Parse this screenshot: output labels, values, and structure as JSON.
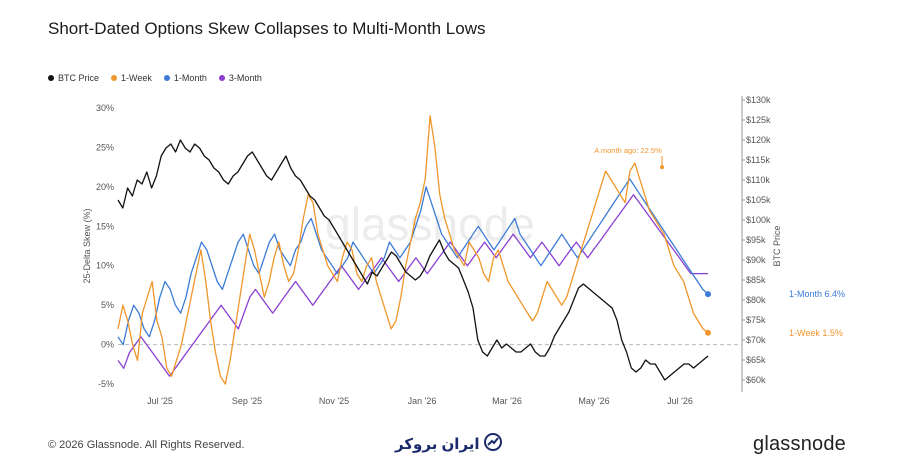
{
  "header": {
    "title": "Short-Dated Options Skew Collapses to Multi-Month Lows"
  },
  "legend": {
    "items": [
      {
        "label": "BTC Price",
        "color": "#111111"
      },
      {
        "label": "1-Week",
        "color": "#f0962b"
      },
      {
        "label": "1-Month",
        "color": "#3c7bd6"
      },
      {
        "label": "3-Month",
        "color": "#8a3fd1"
      }
    ]
  },
  "footer": {
    "copyright": "© 2026 Glassnode. All Rights Reserved.",
    "brand": "glassnode",
    "center_logo_text": "ایران بروکر"
  },
  "chart_data": {
    "type": "line",
    "title": "Short-Dated Options Skew Collapses to Multi-Month Lows",
    "ylabel": "25-Delta Skew (%)",
    "y2label": "BTC Price",
    "ylim": [
      -6,
      31
    ],
    "y2lim": [
      57000,
      130000
    ],
    "x_ticks": [
      "Jul '25",
      "Sep '25",
      "Nov '25",
      "Jan '26",
      "Mar '26",
      "May '26",
      "Jul '26"
    ],
    "y_ticks": [
      "30%",
      "25%",
      "20%",
      "15%",
      "10%",
      "5%",
      "0%",
      "-5%"
    ],
    "y_tick_values": [
      30,
      25,
      20,
      15,
      10,
      5,
      0,
      -5
    ],
    "y2_ticks": [
      "$130k",
      "$125k",
      "$120k",
      "$115k",
      "$110k",
      "$105k",
      "$100k",
      "$95k",
      "$90k",
      "$85k",
      "$80k",
      "$75k",
      "$70k",
      "$65k",
      "$60k"
    ],
    "y2_tick_values": [
      130000,
      125000,
      120000,
      115000,
      110000,
      105000,
      100000,
      95000,
      90000,
      85000,
      80000,
      75000,
      70000,
      65000,
      60000
    ],
    "annotation": {
      "text": "A month ago: 22.5%"
    },
    "end_labels": [
      {
        "text": "1-Month 6.4%",
        "value": 6.4,
        "color": "#3c7bd6"
      },
      {
        "text": "1-Week 1.5%",
        "value": 1.5,
        "color": "#f0962b"
      }
    ],
    "series": [
      {
        "name": "BTC Price",
        "axis": "right",
        "color": "#111111",
        "values": [
          105000,
          103000,
          108000,
          106000,
          110000,
          109000,
          112000,
          108000,
          111000,
          116000,
          118000,
          119000,
          117000,
          120000,
          118000,
          117000,
          119000,
          118000,
          116000,
          115000,
          113000,
          112000,
          110000,
          109000,
          111000,
          112000,
          114000,
          116000,
          117000,
          115000,
          113000,
          111000,
          110000,
          112000,
          114000,
          116000,
          113000,
          111000,
          110000,
          108000,
          106000,
          105000,
          103000,
          101000,
          100000,
          98000,
          96000,
          94000,
          92000,
          90000,
          88000,
          86000,
          84000,
          87000,
          86000,
          88000,
          90000,
          92000,
          91000,
          89000,
          87000,
          86000,
          85000,
          86000,
          88000,
          91000,
          93000,
          95000,
          92000,
          90000,
          89000,
          88000,
          85000,
          82000,
          78000,
          70000,
          67000,
          66000,
          68000,
          70000,
          68000,
          69000,
          68000,
          67000,
          67000,
          68000,
          69000,
          67000,
          66000,
          66000,
          68000,
          71000,
          73000,
          75000,
          77000,
          80000,
          83000,
          84000,
          83000,
          82000,
          81000,
          80000,
          79000,
          78000,
          75000,
          70000,
          67000,
          63000,
          62000,
          63000,
          65000,
          64000,
          64000,
          62000,
          60000,
          61000,
          62000,
          63000,
          64000,
          64000,
          63000,
          64000,
          65000,
          66000
        ]
      },
      {
        "name": "1-Week",
        "axis": "left",
        "color": "#f0962b",
        "values": [
          2,
          5,
          3,
          0,
          -2,
          4,
          6,
          8,
          3,
          1,
          -3,
          -4,
          -2,
          0,
          3,
          6,
          9,
          12,
          8,
          3,
          -1,
          -4,
          -5,
          -2,
          2,
          6,
          10,
          14,
          12,
          9,
          6,
          8,
          11,
          13,
          10,
          8,
          9,
          12,
          16,
          19,
          18,
          14,
          12,
          10,
          9,
          8,
          11,
          13,
          12,
          9,
          8,
          10,
          11,
          8,
          6,
          4,
          2,
          3,
          6,
          10,
          13,
          16,
          18,
          21,
          29,
          25,
          19,
          16,
          14,
          12,
          11,
          10,
          13,
          12,
          11,
          9,
          8,
          11,
          12,
          10,
          8,
          7,
          6,
          5,
          4,
          3,
          4,
          6,
          8,
          7,
          6,
          5,
          6,
          8,
          10,
          12,
          14,
          16,
          18,
          20,
          22,
          21,
          20,
          19,
          18,
          22,
          23,
          21,
          19,
          17,
          16,
          15,
          14,
          12,
          10,
          9,
          8,
          6,
          4,
          3,
          2,
          1.5
        ]
      },
      {
        "name": "1-Month",
        "axis": "left",
        "color": "#3c7bd6",
        "values": [
          1,
          0,
          3,
          5,
          4,
          2,
          1,
          3,
          6,
          8,
          7,
          5,
          4,
          6,
          9,
          11,
          13,
          12,
          10,
          8,
          7,
          9,
          11,
          13,
          14,
          12,
          10,
          9,
          11,
          13,
          14,
          12,
          11,
          10,
          12,
          13,
          15,
          16,
          14,
          12,
          11,
          10,
          9,
          10,
          11,
          13,
          12,
          11,
          10,
          9,
          10,
          11,
          13,
          12,
          11,
          12,
          13,
          15,
          17,
          20,
          18,
          16,
          14,
          13,
          12,
          11,
          12,
          13,
          14,
          15,
          14,
          13,
          12,
          13,
          14,
          15,
          16,
          14,
          13,
          12,
          11,
          10,
          11,
          12,
          13,
          14,
          13,
          12,
          11,
          12,
          13,
          14,
          15,
          16,
          17,
          18,
          19,
          20,
          21,
          20,
          19,
          18,
          17,
          16,
          15,
          14,
          13,
          12,
          11,
          10,
          9,
          8,
          7,
          6.4
        ]
      },
      {
        "name": "3-Month",
        "axis": "left",
        "color": "#8a3fd1",
        "values": [
          -2,
          -3,
          -1,
          0,
          1,
          0,
          -1,
          -2,
          -3,
          -4,
          -3,
          -2,
          -1,
          0,
          1,
          2,
          3,
          4,
          5,
          4,
          3,
          2,
          4,
          6,
          7,
          6,
          5,
          4,
          5,
          6,
          7,
          8,
          7,
          6,
          5,
          6,
          7,
          8,
          9,
          10,
          9,
          8,
          7,
          8,
          9,
          10,
          11,
          10,
          9,
          8,
          9,
          10,
          11,
          10,
          9,
          10,
          11,
          12,
          13,
          12,
          11,
          10,
          11,
          12,
          13,
          12,
          11,
          12,
          13,
          14,
          13,
          12,
          11,
          12,
          13,
          12,
          11,
          10,
          11,
          12,
          13,
          12,
          11,
          12,
          13,
          14,
          15,
          16,
          17,
          18,
          19,
          18,
          17,
          16,
          15,
          14,
          13,
          12,
          11,
          10,
          9,
          9,
          9,
          9
        ]
      }
    ]
  }
}
